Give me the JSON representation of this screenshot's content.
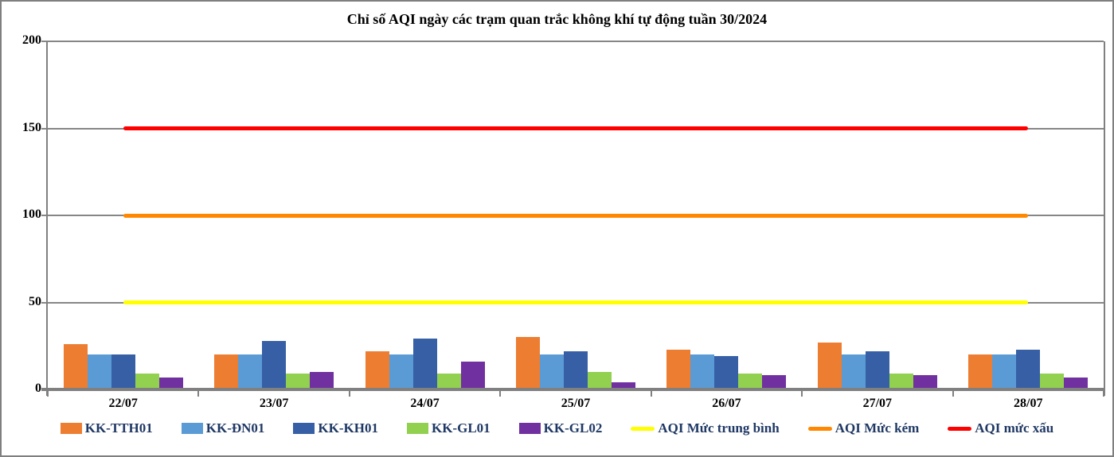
{
  "frame": {
    "background": "#ffffff",
    "border_color": "#7f7f7f"
  },
  "chart_data": {
    "type": "bar",
    "title": "Chỉ số AQI ngày các trạm quan trắc không khí tự động tuần 30/2024",
    "categories": [
      "22/07",
      "23/07",
      "24/07",
      "25/07",
      "26/07",
      "27/07",
      "28/07"
    ],
    "series": [
      {
        "name": "KK-TTH01",
        "color": "#ED7D31",
        "values": [
          26,
          20,
          22,
          30,
          23,
          27,
          20
        ]
      },
      {
        "name": "KK-ĐN01",
        "color": "#5B9BD5",
        "values": [
          20,
          20,
          20,
          20,
          20,
          20,
          20
        ]
      },
      {
        "name": "KK-KH01",
        "color": "#375FA5",
        "values": [
          20,
          28,
          29,
          22,
          19,
          22,
          23
        ]
      },
      {
        "name": "KK-GL01",
        "color": "#92D050",
        "values": [
          9,
          9,
          9,
          10,
          9,
          9,
          9
        ]
      },
      {
        "name": "KK-GL02",
        "color": "#7030A0",
        "values": [
          7,
          10,
          16,
          4,
          8,
          8,
          7
        ]
      }
    ],
    "threshold_lines": [
      {
        "name": "AQI Mức trung bình",
        "color": "#FFFF00",
        "value": 50
      },
      {
        "name": "AQI Mức kém",
        "color": "#FF8800",
        "value": 100
      },
      {
        "name": "AQI mức xấu",
        "color": "#FF0000",
        "value": 150
      }
    ],
    "xlabel": "",
    "ylabel": "",
    "ylim": [
      0,
      200
    ],
    "yticks": [
      0,
      50,
      100,
      150,
      200
    ],
    "grid": true,
    "legend_position": "bottom",
    "axis_color": "#808080",
    "grid_color": "#868686",
    "tick_label_color": "#000000",
    "legend_text_color": "#1F3864"
  }
}
